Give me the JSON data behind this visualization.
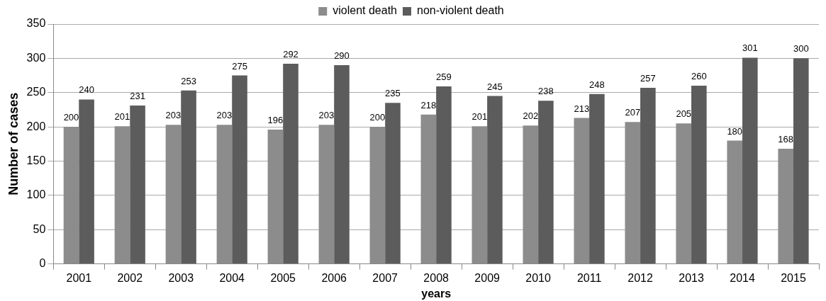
{
  "chart_data": {
    "type": "bar",
    "xlabel": "years",
    "ylabel": "Number of cases",
    "categories": [
      "2001",
      "2002",
      "2003",
      "2004",
      "2005",
      "2006",
      "2007",
      "2008",
      "2009",
      "2010",
      "2011",
      "2012",
      "2013",
      "2014",
      "2015"
    ],
    "series": [
      {
        "name": "violent death",
        "color": "#8c8c8c",
        "values": [
          200,
          201,
          203,
          203,
          196,
          203,
          200,
          218,
          201,
          202,
          213,
          207,
          205,
          180,
          168
        ]
      },
      {
        "name": "non-violent death",
        "color": "#5c5c5c",
        "values": [
          240,
          231,
          253,
          275,
          292,
          290,
          235,
          259,
          245,
          238,
          248,
          257,
          260,
          301,
          300
        ]
      }
    ],
    "ylim": [
      0,
      350
    ],
    "yticks": [
      0,
      50,
      100,
      150,
      200,
      250,
      300,
      350
    ],
    "grid": "y",
    "legend": "top",
    "data_labels": true
  }
}
